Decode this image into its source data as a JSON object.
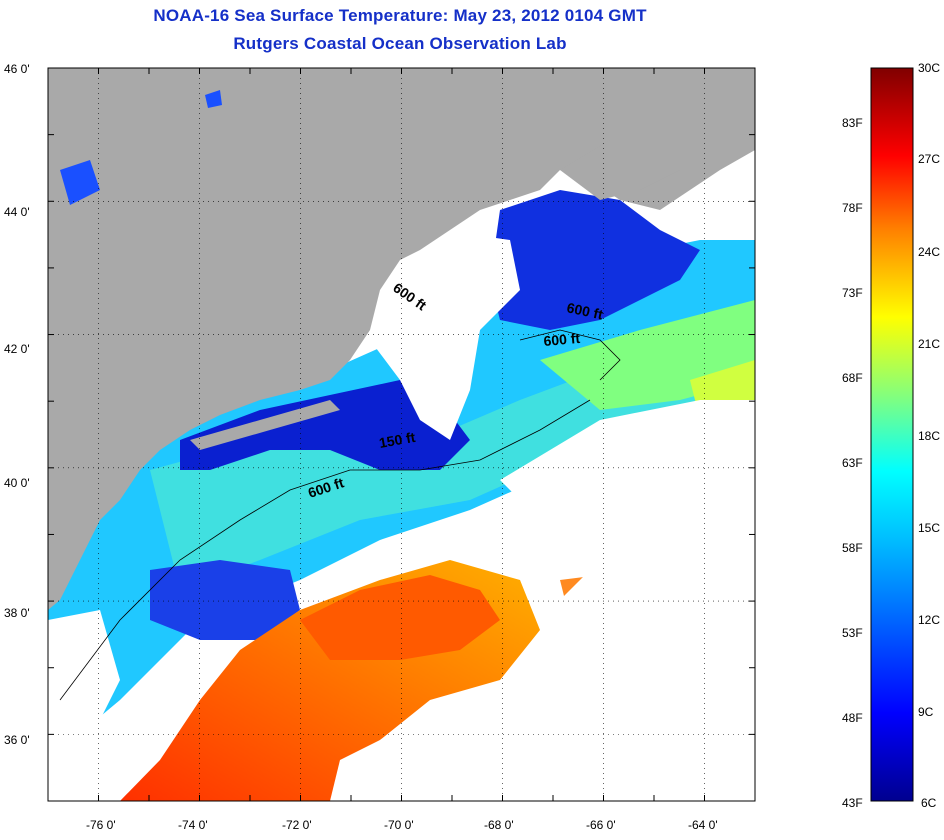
{
  "title": "NOAA-16 Sea Surface Temperature:  May 23, 2012 0104 GMT",
  "subtitle": "Rutgers Coastal Ocean Observation Lab",
  "map": {
    "lat_labels": [
      "46 0'",
      "44 0'",
      "42 0'",
      "40 0'",
      "38 0'",
      "36 0'"
    ],
    "lon_labels": [
      "-76 0'",
      "-74 0'",
      "-72 0'",
      "-70 0'",
      "-68 0'",
      "-66 0'",
      "-64 0'"
    ],
    "lat_range": [
      35,
      46
    ],
    "lon_range": [
      -77,
      -63
    ],
    "land_color": "#a9a9a9",
    "cloud_color": "#ffffff",
    "contour_labels": [
      "600 ft",
      "600 ft",
      "600 ft",
      "600 ft",
      "150 ft"
    ]
  },
  "colorbar": {
    "celsius_labels": [
      "30C",
      "27C",
      "24C",
      "21C",
      "18C",
      "15C",
      "12C",
      "9C",
      "6C"
    ],
    "fahrenheit_labels": [
      "83F",
      "78F",
      "73F",
      "68F",
      "63F",
      "58F",
      "53F",
      "48F",
      "43F"
    ],
    "range_c": [
      6,
      30
    ],
    "colors": [
      "#00008f",
      "#0000ff",
      "#0080ff",
      "#00ffff",
      "#80ff80",
      "#ffff00",
      "#ff8000",
      "#ff0000",
      "#800000"
    ]
  }
}
